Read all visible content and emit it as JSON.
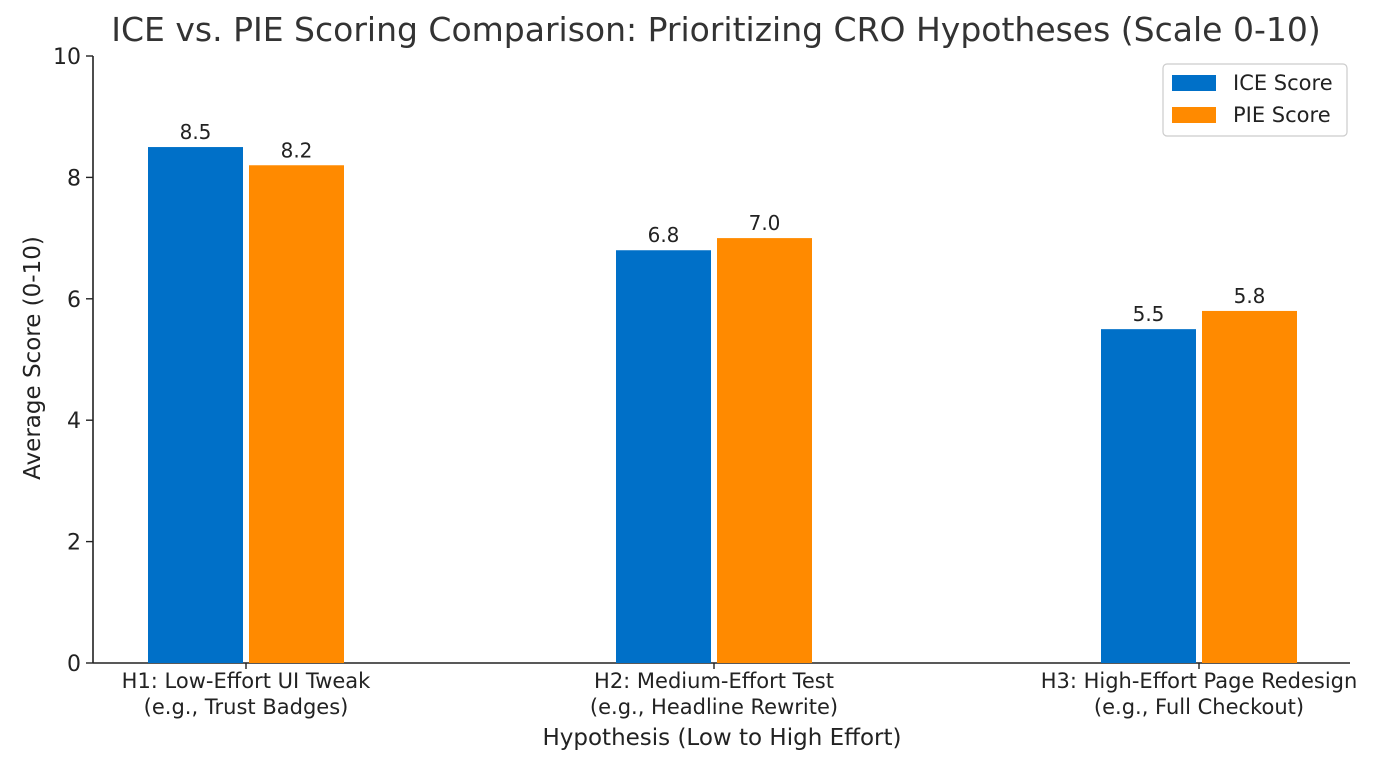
{
  "chart_data": {
    "type": "bar",
    "title": "ICE vs. PIE Scoring Comparison: Prioritizing CRO Hypotheses (Scale 0-10)",
    "xlabel": "Hypothesis (Low to High Effort)",
    "ylabel": "Average Score (0-10)",
    "categories": [
      {
        "line1": "H1: Low-Effort UI Tweak",
        "line2": "(e.g., Trust Badges)"
      },
      {
        "line1": "H2: Medium-Effort Test",
        "line2": "(e.g., Headline Rewrite)"
      },
      {
        "line1": "H3: High-Effort Page Redesign",
        "line2": "(e.g., Full Checkout)"
      }
    ],
    "series": [
      {
        "name": "ICE Score",
        "color": "#0070C8",
        "values": [
          8.5,
          6.8,
          5.5
        ],
        "labels": [
          "8.5",
          "6.8",
          "5.5"
        ]
      },
      {
        "name": "PIE Score",
        "color": "#FF8A00",
        "values": [
          8.2,
          7.0,
          5.8
        ],
        "labels": [
          "8.2",
          "7.0",
          "5.8"
        ]
      }
    ],
    "ylim": [
      0,
      10
    ],
    "yticks": [
      "0",
      "2",
      "4",
      "6",
      "8",
      "10"
    ],
    "grid": false,
    "legend_position": "top-right"
  }
}
